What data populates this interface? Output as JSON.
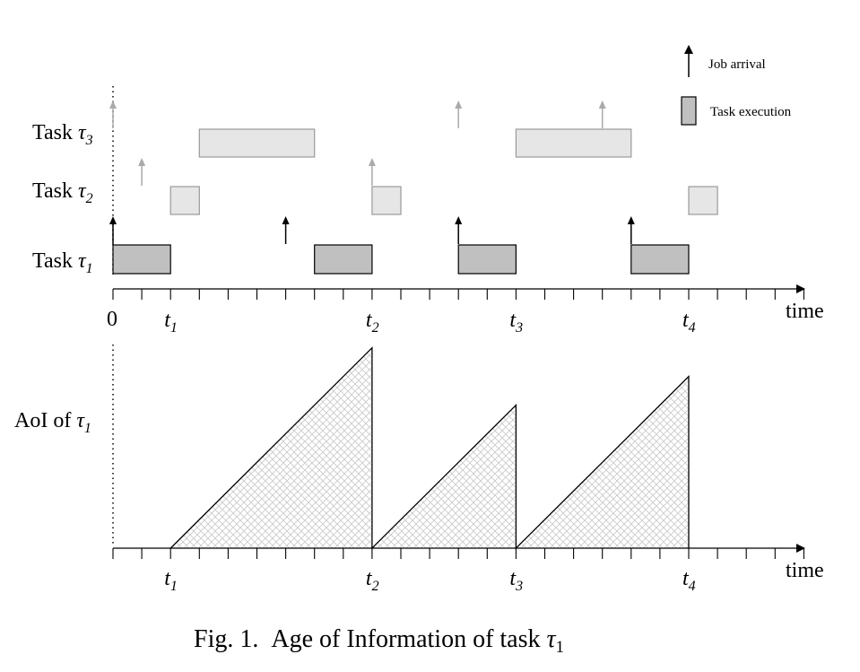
{
  "legend": {
    "arrival_label": "Job arrival",
    "execution_label": "Task execution"
  },
  "tasks": [
    {
      "id": "tau3",
      "label_prefix": "Task ",
      "sym": "τ",
      "sub": "3",
      "executions": [
        [
          3,
          7
        ],
        [
          14,
          18
        ]
      ],
      "arrivals": [
        0,
        12,
        17
      ],
      "faded": true
    },
    {
      "id": "tau2",
      "label_prefix": "Task ",
      "sym": "τ",
      "sub": "2",
      "executions": [
        [
          2,
          3
        ],
        [
          9,
          10
        ],
        [
          20,
          21
        ]
      ],
      "arrivals": [
        1,
        9
      ],
      "faded": true
    },
    {
      "id": "tau1",
      "label_prefix": "Task ",
      "sym": "τ",
      "sub": "1",
      "executions": [
        [
          0,
          2
        ],
        [
          7,
          9
        ],
        [
          12,
          14
        ],
        [
          18,
          20
        ]
      ],
      "arrivals": [
        0,
        6,
        12,
        18
      ],
      "faded": false
    }
  ],
  "timeline": {
    "origin_label": "0",
    "axis_label": "time",
    "ticks": 24,
    "markers": [
      {
        "t": 2,
        "sym": "t",
        "sub": "1"
      },
      {
        "t": 9,
        "sym": "t",
        "sub": "2"
      },
      {
        "t": 14,
        "sym": "t",
        "sub": "3"
      },
      {
        "t": 20,
        "sym": "t",
        "sub": "4"
      }
    ]
  },
  "aoi": {
    "ylabel_prefix": "AoI of ",
    "sym": "τ",
    "sub": "1",
    "axis_label": "time",
    "sawtooth": [
      [
        2,
        0
      ],
      [
        9,
        7
      ],
      [
        9,
        0
      ],
      [
        14,
        5
      ],
      [
        14,
        0
      ],
      [
        20,
        6
      ],
      [
        20,
        0
      ]
    ]
  },
  "caption": {
    "prefix": "Fig. 1.",
    "text": "Age of Information of task ",
    "sym": "τ",
    "sub": "1"
  },
  "colors": {
    "tau1_fill": "#c0c0c0",
    "faded_fill": "#e6e6e6",
    "faded_stroke": "#999999",
    "faded_arrow": "#aaaaaa",
    "hatch": "#c8c8c8"
  }
}
